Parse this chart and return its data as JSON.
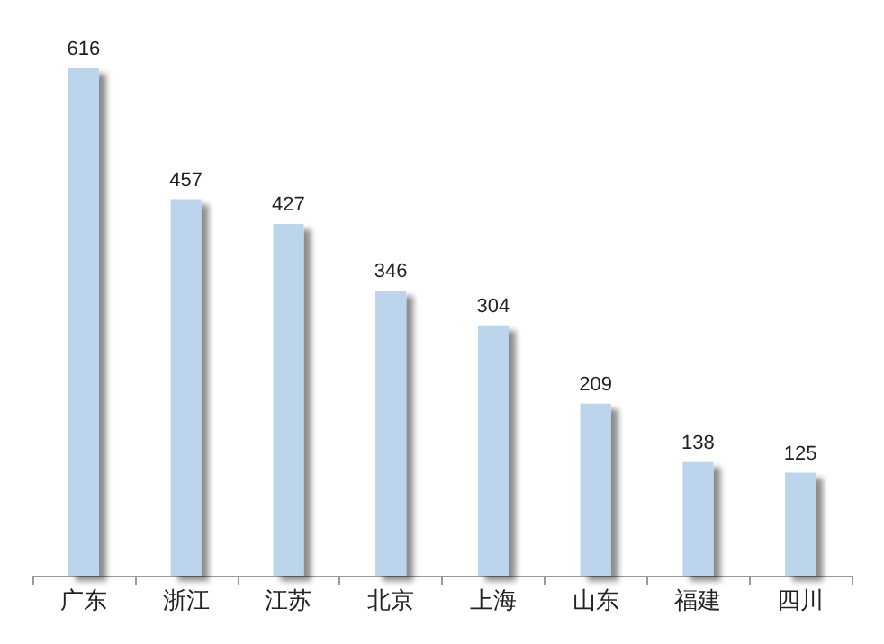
{
  "chart_data": {
    "type": "bar",
    "categories": [
      "广东",
      "浙江",
      "江苏",
      "北京",
      "上海",
      "山东",
      "福建",
      "四川"
    ],
    "values": [
      616,
      457,
      427,
      346,
      304,
      209,
      138,
      125
    ],
    "color": "#bcd5ec",
    "data_labels": true
  }
}
